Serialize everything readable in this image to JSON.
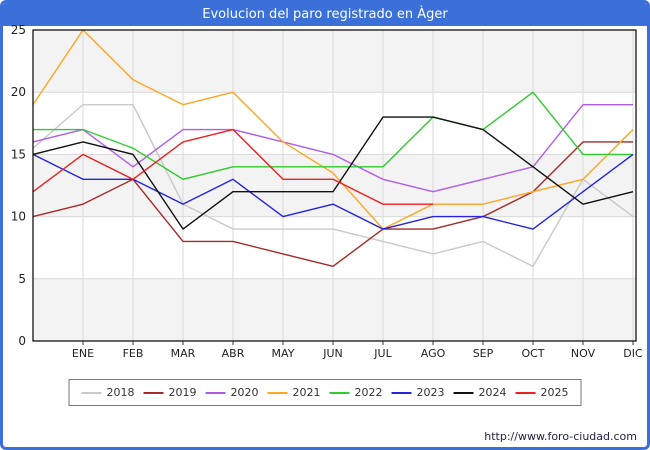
{
  "header": {
    "title": "Evolucion del paro registrado en Àger"
  },
  "footer": {
    "url": "http://www.foro-ciudad.com"
  },
  "chart_data": {
    "type": "line",
    "title": "Evolucion del paro registrado en Àger",
    "x_labels": [
      "ENE",
      "FEB",
      "MAR",
      "ABR",
      "MAY",
      "JUN",
      "JUL",
      "AGO",
      "SEP",
      "OCT",
      "NOV",
      "DIC"
    ],
    "y_ticks": [
      0,
      5,
      10,
      15,
      20,
      25
    ],
    "ylim": [
      0,
      25
    ],
    "grid": true,
    "legend_position": "bottom-center",
    "layout_note": "each series starts with one unlabeled point on the left axis, then one point per month ENE-DIC; 2025 ends in AGO",
    "series": [
      {
        "name": "2018",
        "color": "#c9c9c9",
        "values": [
          15.5,
          19,
          19,
          11,
          9,
          9,
          9,
          8,
          7,
          8,
          6,
          13,
          10
        ]
      },
      {
        "name": "2019",
        "color": "#a52a2a",
        "values": [
          10,
          11,
          13,
          8,
          8,
          7,
          6,
          9,
          9,
          10,
          12,
          16,
          16
        ]
      },
      {
        "name": "2020",
        "color": "#b05ce8",
        "values": [
          16,
          17,
          14,
          17,
          17,
          16,
          15,
          13,
          12,
          13,
          14,
          19,
          19
        ]
      },
      {
        "name": "2021",
        "color": "#ffa51e",
        "values": [
          19,
          25,
          21,
          19,
          20,
          16,
          13.5,
          9,
          11,
          11,
          12,
          13,
          17
        ]
      },
      {
        "name": "2022",
        "color": "#2ecc2e",
        "values": [
          17,
          17,
          15.5,
          13,
          14,
          14,
          14,
          14,
          18,
          17,
          20,
          15,
          15
        ]
      },
      {
        "name": "2023",
        "color": "#2424e0",
        "values": [
          15,
          13,
          13,
          11,
          13,
          10,
          11,
          9,
          10,
          10,
          9,
          12,
          15
        ]
      },
      {
        "name": "2024",
        "color": "#111111",
        "values": [
          15,
          16,
          15,
          9,
          12,
          12,
          12,
          18,
          18,
          17,
          14,
          11,
          12
        ]
      },
      {
        "name": "2025",
        "color": "#ee2020",
        "values": [
          12,
          15,
          13,
          16,
          17,
          13,
          13,
          11,
          11
        ]
      }
    ]
  }
}
